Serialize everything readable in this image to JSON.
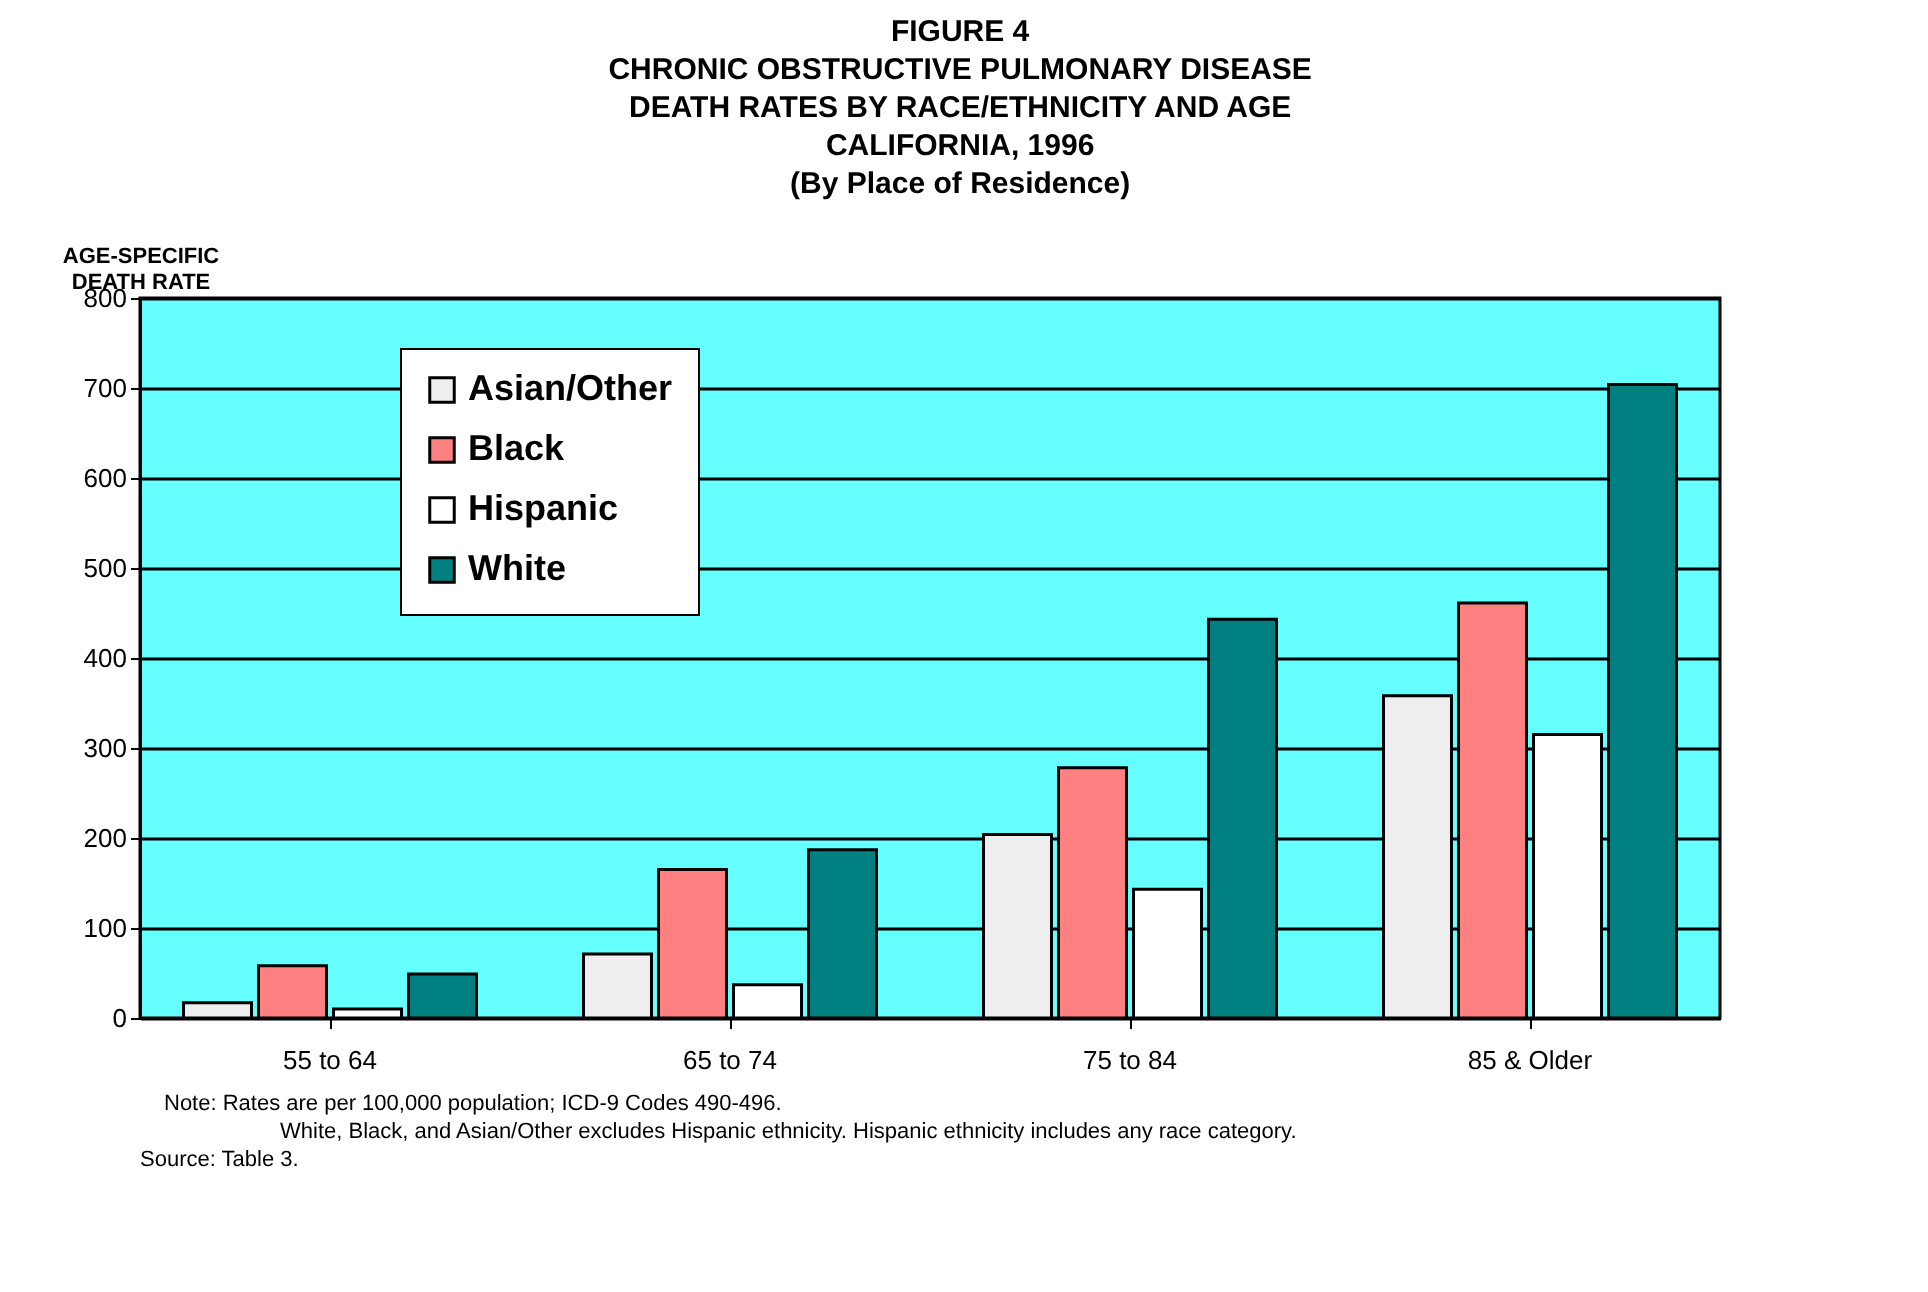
{
  "chart_data": {
    "type": "bar",
    "title": "FIGURE 4\nCHRONIC OBSTRUCTIVE PULMONARY DISEASE\nDEATH RATES BY RACE/ETHNICITY AND AGE\nCALIFORNIA, 1996\n(By Place of Residence)",
    "ylabel": "AGE-SPECIFIC DEATH RATE",
    "categories": [
      "55 to 64",
      "65 to 74",
      "75 to 84",
      "85 & Older"
    ],
    "series": [
      {
        "name": "Asian/Other",
        "color": "#eeeeee",
        "values": [
          17,
          71,
          204,
          358
        ]
      },
      {
        "name": "Black",
        "color": "#ff8080",
        "values": [
          58,
          165,
          278,
          461
        ]
      },
      {
        "name": "Hispanic",
        "color": "#ffffff",
        "values": [
          10,
          37,
          143,
          315
        ]
      },
      {
        "name": "White",
        "color": "#008080",
        "values": [
          49,
          187,
          443,
          704
        ]
      }
    ],
    "ylim": [
      0,
      800
    ],
    "yticks": [
      0,
      100,
      200,
      300,
      400,
      500,
      600,
      700,
      800
    ],
    "grid": "y",
    "legend": "top left",
    "annotations": [
      "Note:  Rates are per 100,000 population; ICD-9 Codes 490-496.",
      "White, Black, and Asian/Other excludes Hispanic ethnicity.  Hispanic ethnicity includes any race category.",
      "Source:  Table 3."
    ]
  }
}
